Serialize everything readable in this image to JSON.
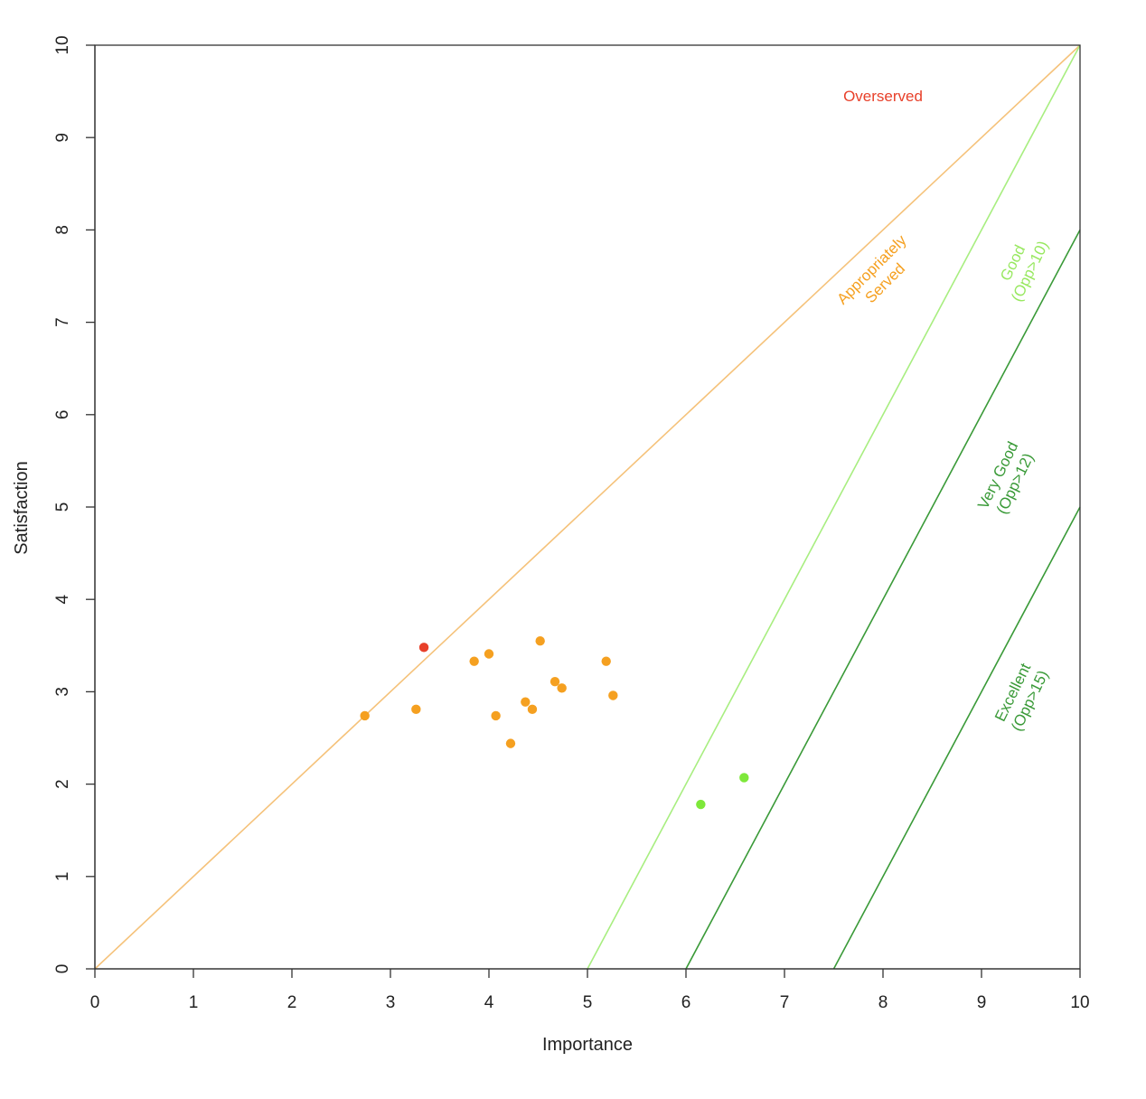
{
  "chart_data": {
    "type": "scatter",
    "xlabel": "Importance",
    "ylabel": "Satisfaction",
    "xlim": [
      0,
      10
    ],
    "ylim": [
      0,
      10
    ],
    "x_ticks": [
      "0",
      "1",
      "2",
      "3",
      "4",
      "5",
      "6",
      "7",
      "8",
      "9",
      "10"
    ],
    "y_ticks": [
      "0",
      "1",
      "2",
      "3",
      "4",
      "5",
      "6",
      "7",
      "8",
      "9",
      "10"
    ],
    "grid": false,
    "colors": {
      "overserved": "#e8402a",
      "appropriate": "#f5a020",
      "good": "#7ee83a",
      "line_diagonal": "#f5c27a",
      "line_good": "#a8ee80",
      "line_dark": "#3a9a38",
      "label_good": "#98e860"
    },
    "reference_lines": [
      {
        "name": "diagonal",
        "from": [
          0,
          0
        ],
        "to": [
          10,
          10
        ],
        "color_key": "line_diagonal"
      },
      {
        "name": "good",
        "from": [
          5,
          0
        ],
        "to": [
          10,
          10
        ],
        "color_key": "line_good"
      },
      {
        "name": "very-good",
        "from": [
          6,
          0
        ],
        "to": [
          10,
          8
        ],
        "color_key": "line_dark"
      },
      {
        "name": "excellent",
        "from": [
          7.5,
          0
        ],
        "to": [
          10,
          5
        ],
        "color_key": "line_dark"
      }
    ],
    "region_labels": [
      {
        "name": "overserved",
        "lines": [
          "Overserved"
        ],
        "x": 8.0,
        "y": 9.45,
        "rotate": 0,
        "color_key": "overserved"
      },
      {
        "name": "appropriately-served",
        "lines": [
          "Appropriately",
          "Served"
        ],
        "x": 7.95,
        "y": 7.5,
        "rotate": -45,
        "color_key": "appropriate"
      },
      {
        "name": "good",
        "lines": [
          "Good",
          "(Opp>10)"
        ],
        "x": 9.4,
        "y": 7.6,
        "rotate": -64,
        "color_key": "label_good"
      },
      {
        "name": "very-good",
        "lines": [
          "Very Good",
          "(Opp>12)"
        ],
        "x": 9.25,
        "y": 5.3,
        "rotate": -64,
        "color_key": "line_dark"
      },
      {
        "name": "excellent",
        "lines": [
          "Excellent",
          "(Opp>15)"
        ],
        "x": 9.4,
        "y": 2.95,
        "rotate": -64,
        "color_key": "line_dark"
      }
    ],
    "points": [
      {
        "x": 3.34,
        "y": 3.48,
        "color_key": "overserved"
      },
      {
        "x": 2.74,
        "y": 2.74,
        "color_key": "appropriate"
      },
      {
        "x": 3.26,
        "y": 2.81,
        "color_key": "appropriate"
      },
      {
        "x": 3.85,
        "y": 3.33,
        "color_key": "appropriate"
      },
      {
        "x": 4.0,
        "y": 3.41,
        "color_key": "appropriate"
      },
      {
        "x": 4.07,
        "y": 2.74,
        "color_key": "appropriate"
      },
      {
        "x": 4.22,
        "y": 2.44,
        "color_key": "appropriate"
      },
      {
        "x": 4.37,
        "y": 2.89,
        "color_key": "appropriate"
      },
      {
        "x": 4.44,
        "y": 2.81,
        "color_key": "appropriate"
      },
      {
        "x": 4.52,
        "y": 3.55,
        "color_key": "appropriate"
      },
      {
        "x": 4.67,
        "y": 3.11,
        "color_key": "appropriate"
      },
      {
        "x": 4.74,
        "y": 3.04,
        "color_key": "appropriate"
      },
      {
        "x": 5.19,
        "y": 3.33,
        "color_key": "appropriate"
      },
      {
        "x": 5.26,
        "y": 2.96,
        "color_key": "appropriate"
      },
      {
        "x": 6.15,
        "y": 1.78,
        "color_key": "good"
      },
      {
        "x": 6.59,
        "y": 2.07,
        "color_key": "good"
      }
    ]
  }
}
